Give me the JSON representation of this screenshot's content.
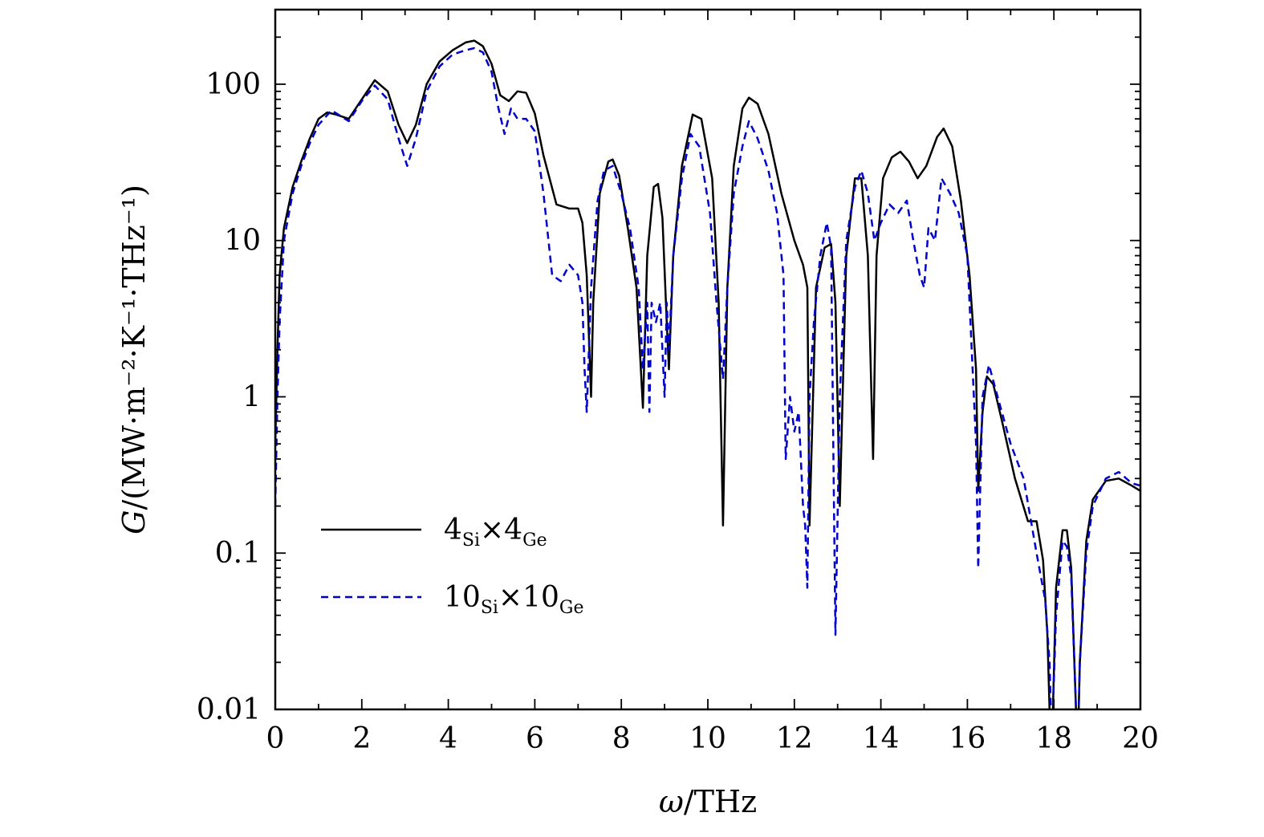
{
  "chart_data": {
    "type": "line",
    "xlabel_symbol": "ω",
    "xlabel_unit": "/THz",
    "ylabel_symbol": "G",
    "ylabel_unit": "/(MW·m⁻²·K⁻¹·THz⁻¹)",
    "xlim": [
      0,
      20
    ],
    "ylim": [
      0.01,
      300
    ],
    "yscale": "log",
    "x_ticks": [
      0,
      2,
      4,
      6,
      8,
      10,
      12,
      14,
      16,
      18,
      20
    ],
    "x_tick_labels": [
      "0",
      "2",
      "4",
      "6",
      "8",
      "10",
      "12",
      "14",
      "16",
      "18",
      "20"
    ],
    "y_ticks": [
      0.01,
      0.1,
      1,
      10,
      100
    ],
    "y_tick_labels": [
      "0.01",
      "0.1",
      "1",
      "10",
      "100"
    ],
    "grid": false,
    "legend_position": "bottom-left",
    "series": [
      {
        "name": "4Si×4Ge",
        "legend_main_1": "4",
        "legend_sub_1": "Si",
        "legend_main_2": "×4",
        "legend_sub_2": "Ge",
        "color": "#000000",
        "style": "solid",
        "x": [
          0.0,
          0.05,
          0.1,
          0.2,
          0.4,
          0.6,
          0.8,
          1.0,
          1.2,
          1.4,
          1.7,
          2.0,
          2.3,
          2.6,
          2.85,
          3.05,
          3.25,
          3.5,
          3.8,
          4.1,
          4.4,
          4.6,
          4.8,
          5.0,
          5.2,
          5.4,
          5.6,
          5.8,
          6.0,
          6.2,
          6.5,
          6.8,
          7.0,
          7.1,
          7.2,
          7.3,
          7.35,
          7.5,
          7.7,
          7.8,
          7.95,
          8.15,
          8.35,
          8.5,
          8.6,
          8.75,
          8.85,
          8.95,
          9.05,
          9.1,
          9.2,
          9.4,
          9.65,
          9.85,
          10.1,
          10.25,
          10.35,
          10.45,
          10.6,
          10.8,
          10.95,
          11.15,
          11.4,
          11.7,
          12.0,
          12.2,
          12.3,
          12.35,
          12.5,
          12.7,
          12.85,
          12.95,
          13.05,
          13.2,
          13.4,
          13.55,
          13.7,
          13.82,
          13.9,
          14.05,
          14.25,
          14.45,
          14.65,
          14.85,
          15.05,
          15.3,
          15.45,
          15.65,
          15.85,
          16.05,
          16.2,
          16.25,
          16.35,
          16.45,
          16.6,
          16.8,
          17.1,
          17.4,
          17.6,
          17.75,
          17.85,
          17.9,
          17.95,
          18.05,
          18.2,
          18.3,
          18.4,
          18.5,
          18.55,
          18.6,
          18.75,
          18.9,
          19.2,
          19.5,
          19.8,
          20.0
        ],
        "values": [
          0.5,
          2.0,
          6.0,
          12,
          22,
          32,
          45,
          60,
          66,
          64,
          60,
          80,
          106,
          90,
          55,
          42,
          55,
          100,
          140,
          165,
          185,
          190,
          175,
          135,
          85,
          78,
          90,
          88,
          65,
          35,
          17,
          16,
          16,
          13,
          6,
          1.0,
          4,
          20,
          32,
          33,
          26,
          12,
          5,
          0.85,
          8,
          22,
          23,
          14,
          3,
          1.5,
          8,
          30,
          64,
          60,
          25,
          4,
          0.15,
          5,
          30,
          70,
          82,
          75,
          48,
          20,
          10,
          7,
          5,
          0.15,
          5,
          9,
          9.5,
          4,
          0.2,
          8,
          25,
          25,
          8,
          0.4,
          8,
          25,
          34,
          37,
          32,
          25,
          30,
          46,
          52,
          40,
          18,
          6,
          1.5,
          0.25,
          0.8,
          1.35,
          1.2,
          0.7,
          0.3,
          0.16,
          0.16,
          0.09,
          0.03,
          0.01,
          0.005,
          0.06,
          0.14,
          0.14,
          0.08,
          0.012,
          0.005,
          0.02,
          0.12,
          0.22,
          0.29,
          0.3,
          0.27,
          0.25
        ]
      },
      {
        "name": "10Si×10Ge",
        "legend_main_1": "10",
        "legend_sub_1": "Si",
        "legend_main_2": "×10",
        "legend_sub_2": "Ge",
        "color": "#0000cc",
        "style": "dashed",
        "x": [
          0.0,
          0.05,
          0.1,
          0.2,
          0.4,
          0.6,
          0.8,
          1.0,
          1.3,
          1.7,
          2.0,
          2.3,
          2.6,
          2.85,
          3.05,
          3.25,
          3.5,
          3.8,
          4.1,
          4.4,
          4.6,
          4.8,
          5.0,
          5.15,
          5.3,
          5.45,
          5.6,
          5.8,
          6.0,
          6.2,
          6.4,
          6.6,
          6.8,
          7.0,
          7.1,
          7.15,
          7.2,
          7.3,
          7.45,
          7.6,
          7.8,
          8.0,
          8.2,
          8.4,
          8.5,
          8.6,
          8.65,
          8.7,
          8.8,
          8.9,
          9.0,
          9.05,
          9.1,
          9.2,
          9.4,
          9.6,
          9.8,
          10.05,
          10.2,
          10.35,
          10.45,
          10.6,
          10.8,
          10.95,
          11.15,
          11.4,
          11.6,
          11.75,
          11.8,
          11.9,
          12.0,
          12.1,
          12.2,
          12.25,
          12.3,
          12.35,
          12.45,
          12.6,
          12.75,
          12.85,
          12.9,
          12.95,
          13.05,
          13.2,
          13.4,
          13.55,
          13.7,
          13.85,
          14.0,
          14.2,
          14.4,
          14.6,
          14.75,
          14.9,
          15.0,
          15.1,
          15.25,
          15.4,
          15.6,
          15.8,
          16.0,
          16.1,
          16.2,
          16.25,
          16.35,
          16.5,
          16.7,
          17.0,
          17.3,
          17.6,
          17.8,
          17.9,
          17.95,
          18.05,
          18.2,
          18.3,
          18.4,
          18.5,
          18.55,
          18.6,
          18.75,
          18.9,
          19.2,
          19.5,
          19.8,
          20.0
        ],
        "values": [
          0.2,
          1.0,
          3.0,
          10,
          20,
          30,
          42,
          55,
          68,
          58,
          78,
          98,
          80,
          45,
          30,
          45,
          90,
          130,
          155,
          165,
          170,
          160,
          120,
          72,
          48,
          70,
          60,
          60,
          50,
          20,
          6,
          5.5,
          7,
          6,
          4,
          1.5,
          0.8,
          5,
          18,
          28,
          30,
          20,
          12,
          5,
          1.5,
          4,
          0.8,
          4,
          3,
          4,
          1.0,
          4,
          2,
          8,
          25,
          48,
          40,
          15,
          4,
          1.3,
          5,
          20,
          40,
          58,
          45,
          28,
          15,
          6,
          0.4,
          1.0,
          0.6,
          0.8,
          0.2,
          0.15,
          0.06,
          1.0,
          3,
          8,
          13,
          9,
          0.5,
          0.03,
          1.0,
          10,
          22,
          28,
          20,
          10,
          13,
          17,
          15,
          18,
          10,
          6,
          5,
          12,
          10,
          25,
          20,
          15,
          8,
          2,
          0.5,
          0.08,
          1.0,
          1.6,
          1.0,
          0.5,
          0.3,
          0.1,
          0.05,
          0.02,
          0.006,
          0.04,
          0.12,
          0.11,
          0.07,
          0.012,
          0.005,
          0.02,
          0.1,
          0.2,
          0.3,
          0.33,
          0.28,
          0.27
        ]
      }
    ]
  }
}
